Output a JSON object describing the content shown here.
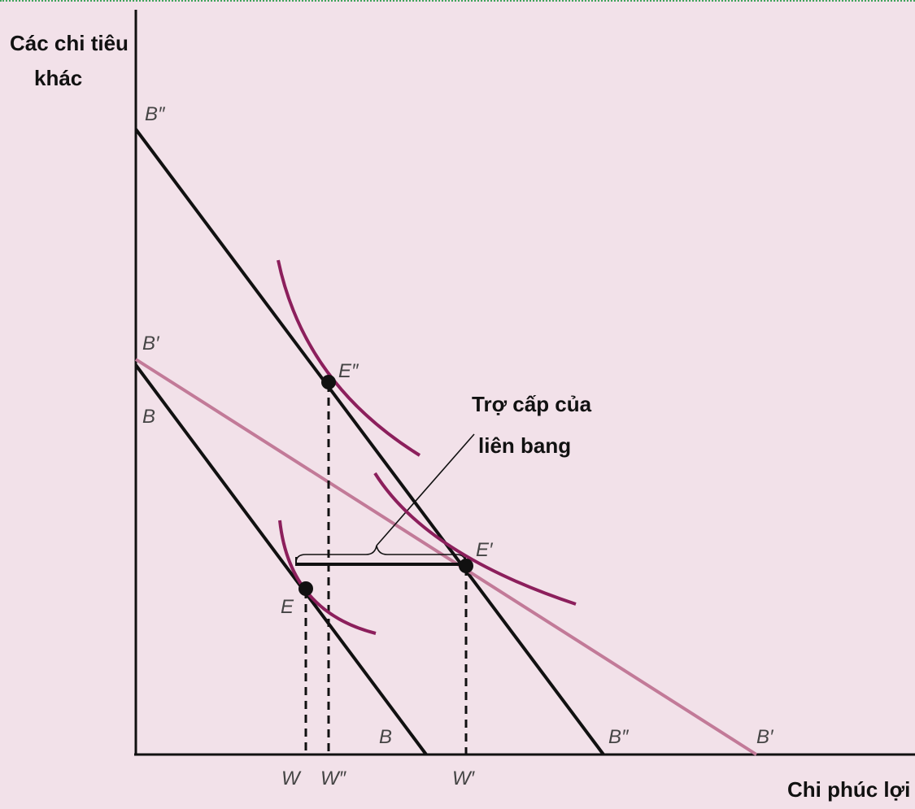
{
  "y_axis_title": [
    "Các chi tiêu",
    "khác"
  ],
  "x_axis_title": "Chi phúc lợi",
  "callout_text": [
    "Trợ cấp của",
    "liên bang"
  ],
  "line_labels": {
    "b_double_prime_top": "B″",
    "b_prime_top": "B′",
    "b_top": "B",
    "b_bottom": "B",
    "b_double_prime_bottom": "B″",
    "b_prime_bottom": "B′"
  },
  "point_labels": {
    "e": "E",
    "e_double_prime": "E″",
    "e_prime": "E′"
  },
  "x_tick_labels": {
    "w": "W",
    "w_double_prime": "W″",
    "w_prime": "W′"
  },
  "colors": {
    "background": "#f2e1e9",
    "axis": "#111111",
    "budget_line": "#111111",
    "matching_line": "#c27a98",
    "indifference_curve": "#8c1f5c"
  }
}
